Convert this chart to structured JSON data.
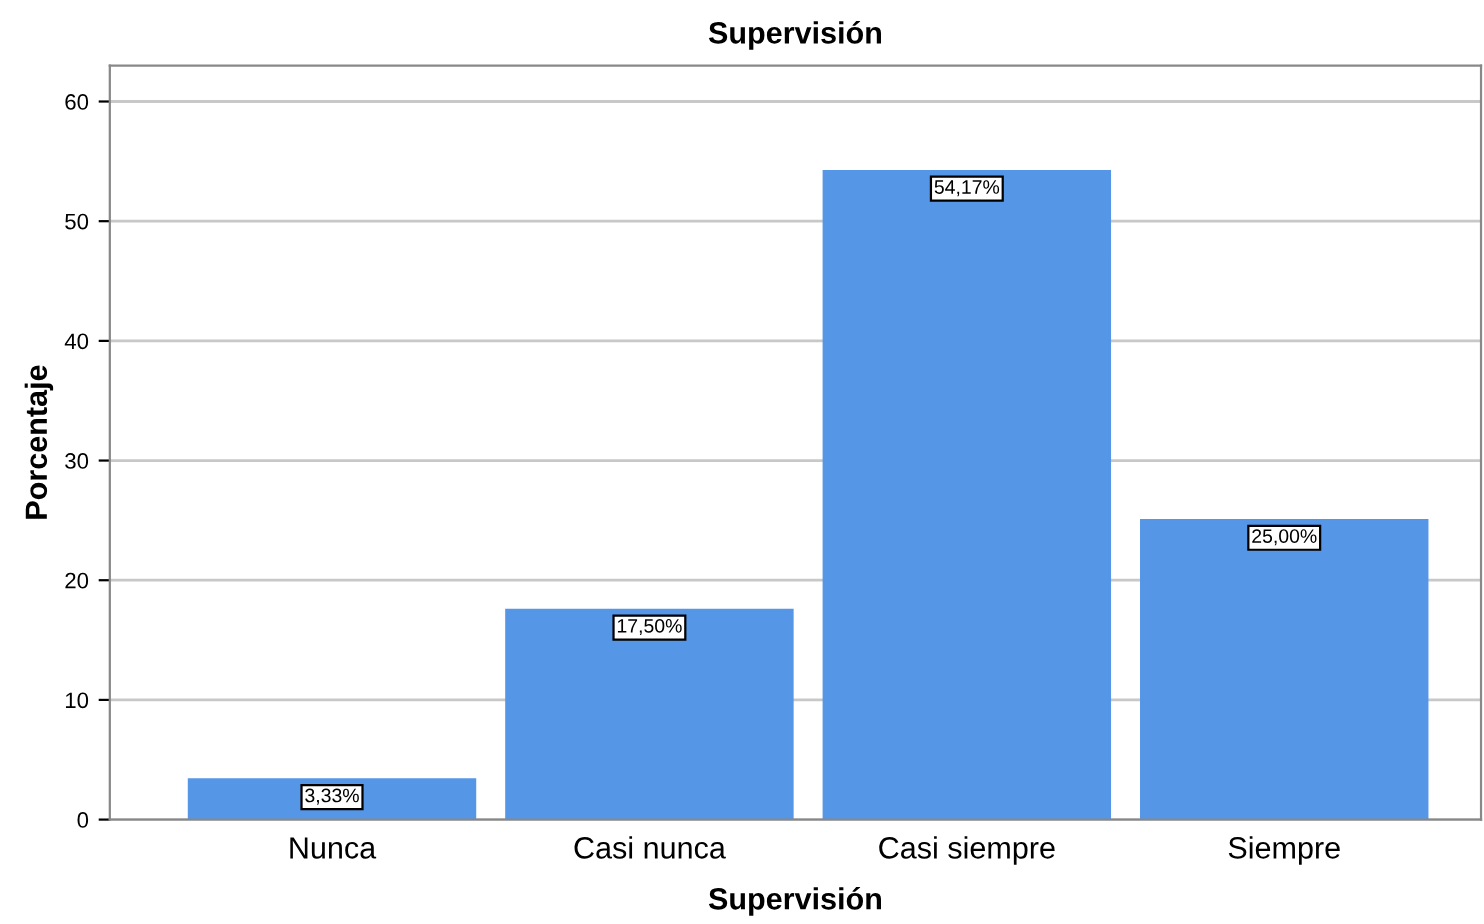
{
  "chart_data": {
    "type": "bar",
    "title": "Supervisión",
    "xlabel": "Supervisión",
    "ylabel": "Porcentaje",
    "categories": [
      "Nunca",
      "Casi nunca",
      "Casi siempre",
      "Siempre"
    ],
    "values": [
      3.33,
      17.5,
      54.17,
      25.0
    ],
    "value_labels": [
      "3,33%",
      "17,50%",
      "54,17%",
      "25,00%"
    ],
    "color": "#5596e6",
    "ylim": [
      0,
      63
    ],
    "yticks": [
      0,
      10,
      20,
      30,
      40,
      50,
      60
    ],
    "grid": "y"
  }
}
